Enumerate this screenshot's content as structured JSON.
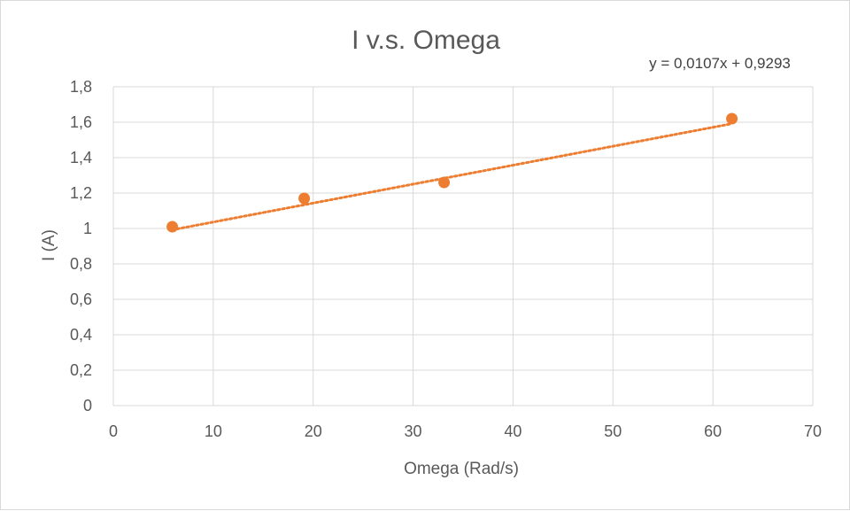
{
  "chart_data": {
    "type": "scatter",
    "title": "I v.s. Omega",
    "xlabel": "Omega (Rad/s)",
    "ylabel": "I (A)",
    "xlim": [
      0,
      70
    ],
    "ylim": [
      0,
      1.8
    ],
    "x_ticks": [
      "0",
      "10",
      "20",
      "30",
      "40",
      "50",
      "60",
      "70"
    ],
    "y_ticks": [
      "0",
      "0,2",
      "0,4",
      "0,6",
      "0,8",
      "1",
      "1,2",
      "1,4",
      "1,6",
      "1,8"
    ],
    "grid": true,
    "series": [
      {
        "points": [
          {
            "x": 5.9,
            "y": 1.01
          },
          {
            "x": 19.1,
            "y": 1.17
          },
          {
            "x": 33.1,
            "y": 1.26
          },
          {
            "x": 61.9,
            "y": 1.62
          }
        ],
        "color": "#ED7D31"
      }
    ],
    "trendline": {
      "type": "linear",
      "slope": 0.0107,
      "intercept": 0.9293,
      "x_range": [
        5.9,
        61.9
      ],
      "equation_label": "y = 0,0107x + 0,9293",
      "style": "dotted",
      "color": "#ED7D31"
    }
  }
}
